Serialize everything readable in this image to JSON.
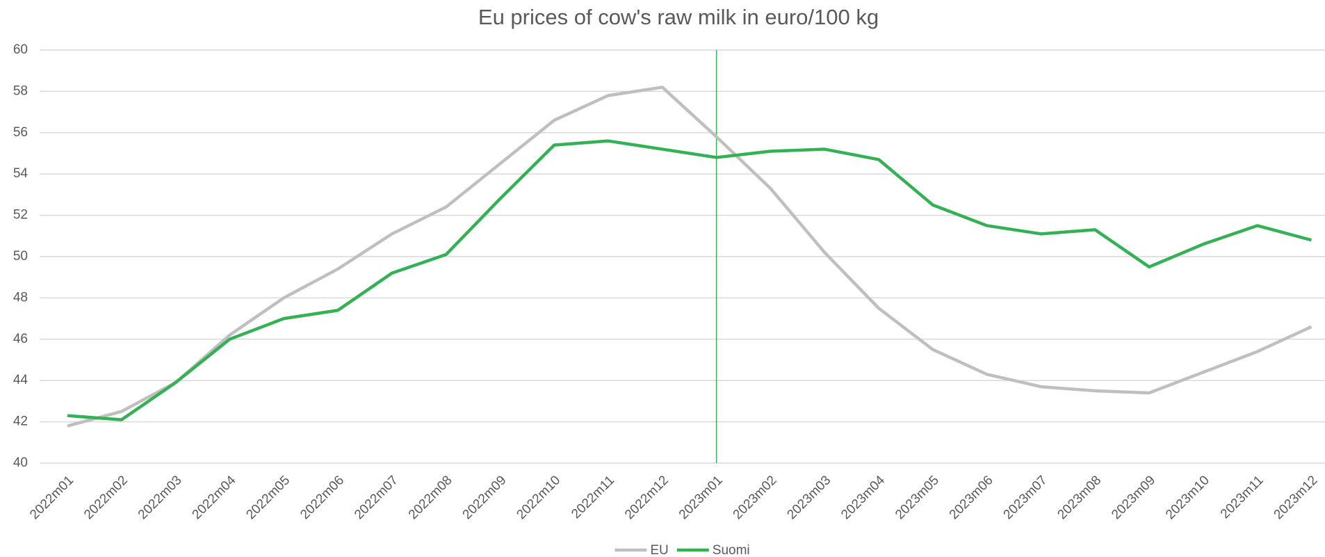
{
  "chart_data": {
    "type": "line",
    "title": "Eu prices of cow's raw milk in euro/100 kg",
    "categories": [
      "2022m01",
      "2022m02",
      "2022m03",
      "2022m04",
      "2022m05",
      "2022m06",
      "2022m07",
      "2022m08",
      "2022m09",
      "2022m10",
      "2022m11",
      "2022m12",
      "2023m01",
      "2023m02",
      "2023m03",
      "2023m04",
      "2023m05",
      "2023m06",
      "2023m07",
      "2023m08",
      "2023m09",
      "2023m10",
      "2023m11",
      "2023m12"
    ],
    "series": [
      {
        "name": "EU",
        "color": "#bfbfbf",
        "values": [
          41.8,
          42.5,
          43.9,
          46.2,
          48.0,
          49.4,
          51.1,
          52.4,
          54.5,
          56.6,
          57.8,
          58.2,
          55.8,
          53.3,
          50.2,
          47.5,
          45.5,
          44.3,
          43.7,
          43.5,
          43.4,
          44.4,
          45.4,
          46.6
        ]
      },
      {
        "name": "Suomi",
        "color": "#33b154",
        "values": [
          42.3,
          42.1,
          43.9,
          46.0,
          47.0,
          47.4,
          49.2,
          50.1,
          52.8,
          55.4,
          55.6,
          55.2,
          54.8,
          55.1,
          55.2,
          54.7,
          52.5,
          51.5,
          51.1,
          51.3,
          49.5,
          50.6,
          51.5,
          50.8
        ]
      }
    ],
    "ylim": [
      40,
      60
    ],
    "yticks": [
      40,
      42,
      44,
      46,
      48,
      50,
      52,
      54,
      56,
      58,
      60
    ],
    "grid": true,
    "vline": "2023m01",
    "vline_color": "#33b154",
    "legend": "bottom"
  }
}
